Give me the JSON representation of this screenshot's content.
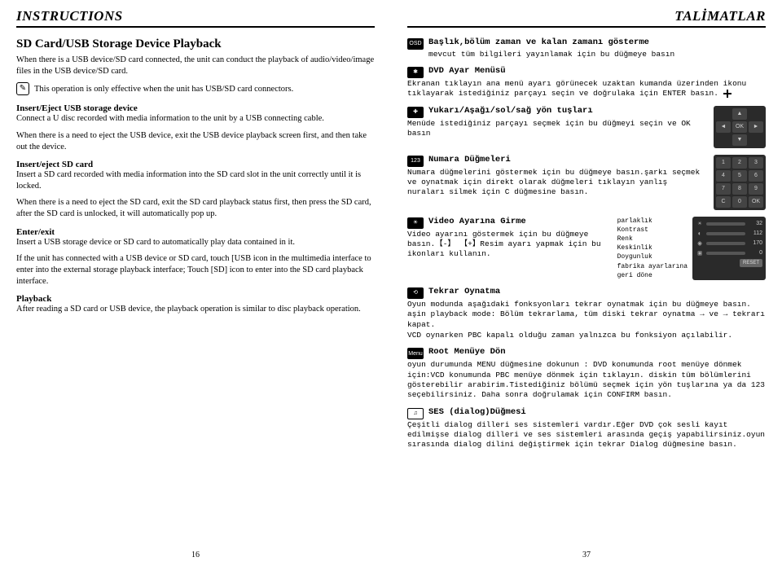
{
  "left": {
    "header": "INSTRUCTIONS",
    "page_num": "16",
    "title": "SD Card/USB Storage Device Playback",
    "intro": "When there is a USB device/SD card connected, the unit can conduct the playback of audio/video/image files in the USB device/SD card.",
    "note": "This operation is only effective when the unit has USB/SD card connectors.",
    "s1_title": "Insert/Eject USB storage device",
    "s1_p1": "Connect a U disc recorded with media information to the unit by a USB connecting cable.",
    "s1_p2": "When there is a need to eject the USB device, exit the USB device playback screen first, and then take out the device.",
    "s2_title": "Insert/eject SD card",
    "s2_p1": "Insert a SD card recorded with media information into the SD card slot in the unit correctly until it is locked.",
    "s2_p2": "When there is a need to eject the SD card, exit the SD card playback status first, then press the SD card, after the SD card is unlocked, it will automatically pop up.",
    "s3_title": "Enter/exit",
    "s3_p1": "Insert a USB storage device or SD card to automatically play data contained in it.",
    "s3_p2": "If the unit has connected with a USB device or SD card, touch [USB   icon in the multimedia interface to enter into the external storage playback interface; Touch [SD]   icon to enter into the SD card playback interface.",
    "s4_title": "Playback",
    "s4_p1": "After reading a SD card or USB device, the playback operation is similar to disc playback operation."
  },
  "right": {
    "header": "TALİMATLAR",
    "page_num": "37",
    "osd_title": "Başlık,bölüm zaman ve kalan zamanı gösterme",
    "osd_text": "mevcut tüm bilgileri yayınlamak için bu düğmeye basın",
    "dvd_title": "DVD Ayar Menüsü",
    "dvd_text": "Ekranan tıklayın  ana menü ayarı görünecek uzaktan kumanda üzerinden     ikonu tıklayarak istediğiniz parçayı seçin ve doğrulaka için ENTER basın.",
    "arrows_title": "Yukarı/Aşağı/sol/sağ yön tuşları",
    "arrows_text": "Menüde istediğiniz parçayı seçmek için bu düğmeyi seçin ve OK basın",
    "num_title": "Numara Düğmeleri",
    "num_text": "Numara düğmelerini göstermek için bu düğmeye basın.şarkı seçmek ve oynatmak için direkt olarak düğmeleri tıklayın yanlış nuraları silmek için C düğmesine basın.",
    "vid_title": "Video Ayarına Girme",
    "vid_text": "Video ayarını göstermek için bu düğmeye basın.【-】 【+】Resim ayarı yapmak için bu ikonları kullanın.",
    "slider_labels": {
      "a": "parlaklık",
      "b": "Kontrast",
      "c": "Renk",
      "d": "Keskinlik",
      "e": "Doygunluk",
      "f": "fabrika ayarlarına",
      "g": "geri döne"
    },
    "slider_vals": {
      "a": "32",
      "b": "112",
      "c": "170",
      "d": "0"
    },
    "reset": "RESET",
    "rep_title": "Tekrar Oynatma",
    "rep_text": "Oyun modunda aşağıdaki fonksyonları tekrar oynatmak için bu düğmeye basın. aşin playback mode: Bölüm tekrarlama, tüm diski tekrar oynatma → ve → tekrarı kapat.",
    "rep_text2": "VCD oynarken PBC kapalı olduğu zaman yalnızca  bu fonksiyon  açılabilir.",
    "root_title": "Root Menüye Dön",
    "root_text": "oyun durumunda MENU düğmesine dokunun : DVD konumunda root menüye dönmek için:VCD konumunda PBC menüye dönmek için tıklayın. diskin tüm bölümlerini gösterebilir arabirim.Tistediğiniz bölümü seçmek için yön tuşlarına ya da 123 seçebilirsiniz. Daha sonra doğrulamak için CONFIRM basın.",
    "ses_title": "SES (dialog)Düğmesi",
    "ses_text": "Çeşitli dialog dilleri ses sistemleri vardır.Eğer DVD çok sesli kayıt edilmişse dialog dilleri ve ses sistemleri arasında geçiş yapabilirsiniz.oyun sırasında dialog dilini değiştirmek için tekrar Dialog düğmesine basın.",
    "keypad_arrow": [
      "",
      "▲",
      "",
      "◄",
      "OK",
      "►",
      "",
      "▼",
      ""
    ],
    "keypad_num": [
      "1",
      "2",
      "3",
      "4",
      "5",
      "6",
      "7",
      "8",
      "9",
      "C",
      "0",
      "OK"
    ]
  }
}
